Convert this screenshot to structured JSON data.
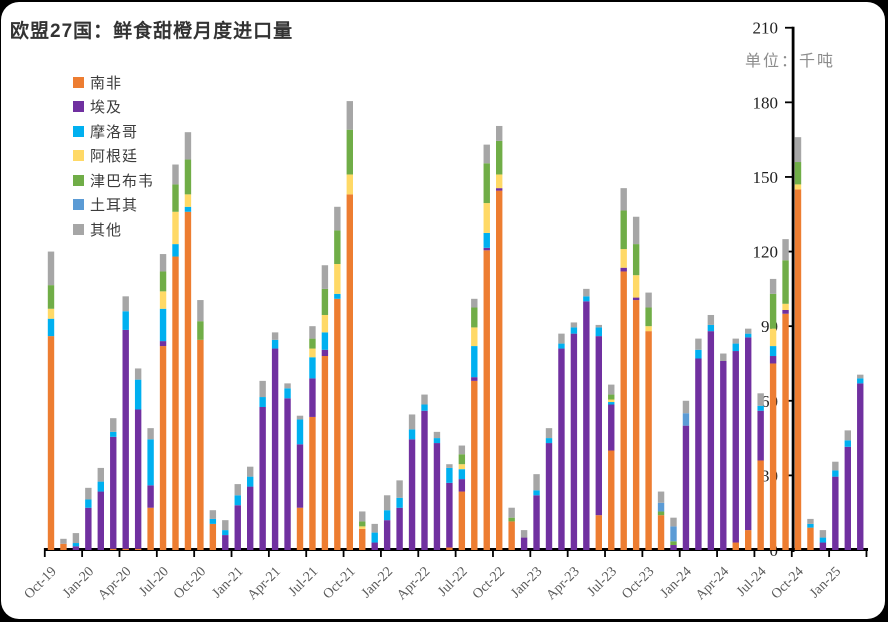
{
  "title": "欧盟27国：鲜食甜橙月度进口量",
  "unit_label": "单位：千吨",
  "colors": {
    "south_africa": "#ED7D31",
    "egypt": "#7030A0",
    "morocco": "#00B0F0",
    "argentina": "#FFD966",
    "zimbabwe": "#70AD47",
    "turkey": "#5B9BD5",
    "other": "#A6A6A6",
    "axis": "#000000"
  },
  "chart_data": {
    "type": "bar",
    "subtype": "stacked-column",
    "title": "欧盟27国：鲜食甜橙月度进口量",
    "ylabel": "单位：千吨",
    "xlabel": "",
    "ylim": [
      0,
      210
    ],
    "y_ticks": [
      0,
      30,
      60,
      90,
      120,
      150,
      180,
      210
    ],
    "grid": false,
    "legend_position": "top-left",
    "x_tick_labels": [
      "Oct-19",
      "Jan-20",
      "Apr-20",
      "Jul-20",
      "Oct-20",
      "Jan-21",
      "Apr-21",
      "Jul-21",
      "Oct-21",
      "Jan-22",
      "Apr-22",
      "Jul-22",
      "Oct-22",
      "Jan-23",
      "Apr-23",
      "Jul-23",
      "Oct-23",
      "Jan-24",
      "Apr-24",
      "Jul-24",
      "Oct-24",
      "Jan-25"
    ],
    "categories": [
      "Oct-19",
      "Nov-19",
      "Dec-19",
      "Jan-20",
      "Feb-20",
      "Mar-20",
      "Apr-20",
      "May-20",
      "Jun-20",
      "Jul-20",
      "Aug-20",
      "Sep-20",
      "Oct-20",
      "Nov-20",
      "Dec-20",
      "Jan-21",
      "Feb-21",
      "Mar-21",
      "Apr-21",
      "May-21",
      "Jun-21",
      "Jul-21",
      "Aug-21",
      "Sep-21",
      "Oct-21",
      "Nov-21",
      "Dec-21",
      "Jan-22",
      "Feb-22",
      "Mar-22",
      "Apr-22",
      "May-22",
      "Jun-22",
      "Jul-22",
      "Aug-22",
      "Sep-22",
      "Oct-22",
      "Nov-22",
      "Dec-22",
      "Jan-23",
      "Feb-23",
      "Mar-23",
      "Apr-23",
      "May-23",
      "Jun-23",
      "Jul-23",
      "Aug-23",
      "Sep-23",
      "Oct-23",
      "Nov-23",
      "Dec-23",
      "Jan-24",
      "Feb-24",
      "Mar-24",
      "Apr-24",
      "May-24",
      "Jun-24",
      "Jul-24",
      "Aug-24",
      "Sep-24",
      "Oct-24",
      "Nov-24",
      "Dec-24",
      "Jan-25",
      "Feb-25",
      "Mar-25"
    ],
    "series": [
      {
        "name": "南非",
        "color": "#ED7D31",
        "values": [
          86,
          2.5,
          0,
          0,
          0,
          0.5,
          0.5,
          0.5,
          17,
          82,
          118,
          136,
          84.5,
          10.5,
          0,
          0,
          0,
          0,
          0,
          0,
          17,
          53.5,
          78,
          101,
          143,
          8.5,
          0,
          0,
          0,
          0,
          0,
          0,
          1,
          23.5,
          68,
          120.5,
          144.5,
          11.5,
          0,
          0,
          0,
          0,
          0,
          0,
          14,
          40,
          112,
          100.5,
          88,
          14,
          0,
          0,
          0,
          0,
          0,
          3,
          8,
          36,
          75,
          95,
          145,
          9,
          0,
          0,
          0,
          0
        ]
      },
      {
        "name": "埃及",
        "color": "#7030A0",
        "values": [
          0,
          0,
          1.5,
          17,
          23.5,
          45,
          88,
          56,
          9,
          2,
          0,
          0,
          0,
          0,
          6,
          18,
          25.5,
          57.5,
          81,
          61,
          25.5,
          15.5,
          2.5,
          0,
          0,
          0,
          3,
          12,
          17,
          44.5,
          56,
          43,
          26,
          5,
          1.5,
          1,
          1,
          0,
          5,
          22,
          43,
          81,
          87,
          100,
          72,
          18.5,
          1.5,
          1,
          0,
          0,
          2,
          50,
          77,
          88,
          76,
          77,
          77.5,
          20,
          3,
          1.5,
          0,
          0,
          3,
          29.5,
          41.5,
          67
        ]
      },
      {
        "name": "摩洛哥",
        "color": "#00B0F0",
        "values": [
          7,
          0,
          1.3,
          3.3,
          4,
          2,
          7.5,
          12,
          18.5,
          13,
          5,
          2,
          0,
          2,
          2,
          4,
          4,
          4,
          3.5,
          4,
          10,
          8.5,
          7,
          2,
          0,
          0,
          4,
          4,
          4,
          4,
          2.5,
          2,
          6,
          4,
          12.5,
          6,
          0,
          0,
          0,
          2,
          2,
          2,
          2.5,
          2,
          3.5,
          1,
          0,
          0,
          0,
          0,
          0,
          0,
          3.5,
          2.5,
          0,
          3,
          1.5,
          2,
          4,
          0,
          0,
          1.5,
          2,
          2.5,
          2.6,
          2
        ]
      },
      {
        "name": "阿根廷",
        "color": "#FFD966",
        "values": [
          4,
          0,
          0,
          0,
          0,
          0,
          0,
          0,
          0,
          7,
          13,
          5,
          0,
          0,
          0,
          0,
          0,
          0,
          0,
          0,
          0,
          3.5,
          7,
          12,
          8,
          1,
          0,
          0,
          0,
          0,
          0,
          0,
          0,
          2,
          7.5,
          12,
          5.5,
          0,
          0,
          0,
          0,
          0,
          0,
          0,
          0,
          1,
          7.5,
          9,
          2,
          0,
          0,
          0,
          0,
          0,
          0,
          0,
          0,
          0,
          7,
          2.5,
          2,
          0,
          0,
          0,
          0,
          0
        ]
      },
      {
        "name": "津巴布韦",
        "color": "#70AD47",
        "values": [
          9.5,
          0,
          0,
          0,
          0,
          0,
          0,
          0,
          0,
          8,
          11,
          14,
          7.5,
          0,
          0,
          0,
          0,
          0,
          0,
          0,
          0,
          4,
          10.5,
          13.5,
          18,
          2,
          0,
          0,
          0,
          0,
          0,
          0,
          0,
          4,
          8,
          16,
          13.5,
          1.5,
          0,
          0,
          0,
          0,
          0,
          0,
          0,
          2,
          15.5,
          12.5,
          7.5,
          1.5,
          1.5,
          0,
          0,
          0,
          0,
          0,
          0,
          0,
          14,
          17.5,
          9,
          0,
          0,
          0,
          0,
          0
        ]
      },
      {
        "name": "土耳其",
        "color": "#5B9BD5",
        "values": [
          0,
          0,
          0,
          0,
          0,
          0,
          0,
          0,
          0,
          0,
          0,
          0,
          0,
          0,
          0,
          0,
          0,
          0,
          0,
          0,
          0,
          0,
          0,
          0,
          0,
          0,
          0,
          0,
          0,
          0,
          0,
          0,
          0,
          0,
          0,
          0,
          0,
          0,
          0,
          0,
          0,
          0,
          0,
          0,
          0,
          0,
          0,
          0,
          0,
          3.5,
          6,
          5,
          0,
          0,
          0,
          0,
          0,
          0,
          0,
          0,
          0,
          0,
          0,
          0,
          0,
          0
        ]
      },
      {
        "name": "其他",
        "color": "#A6A6A6",
        "values": [
          13.5,
          2,
          4,
          4.7,
          5.5,
          5.5,
          6,
          4.5,
          4.5,
          7,
          8,
          11,
          8.5,
          3.5,
          4,
          4.5,
          4,
          6.5,
          3,
          2,
          1.5,
          5,
          9.5,
          9.5,
          11.5,
          4,
          3.5,
          6,
          7,
          6,
          4,
          2.5,
          1.5,
          3.5,
          3.5,
          7.5,
          6,
          4,
          3,
          6.5,
          4,
          4,
          2,
          3,
          1,
          4,
          9,
          11,
          6,
          4.5,
          3.5,
          5,
          4.5,
          4,
          3,
          2,
          2,
          5,
          6,
          8.5,
          10,
          2,
          3,
          3.5,
          4,
          1.5
        ]
      }
    ]
  }
}
